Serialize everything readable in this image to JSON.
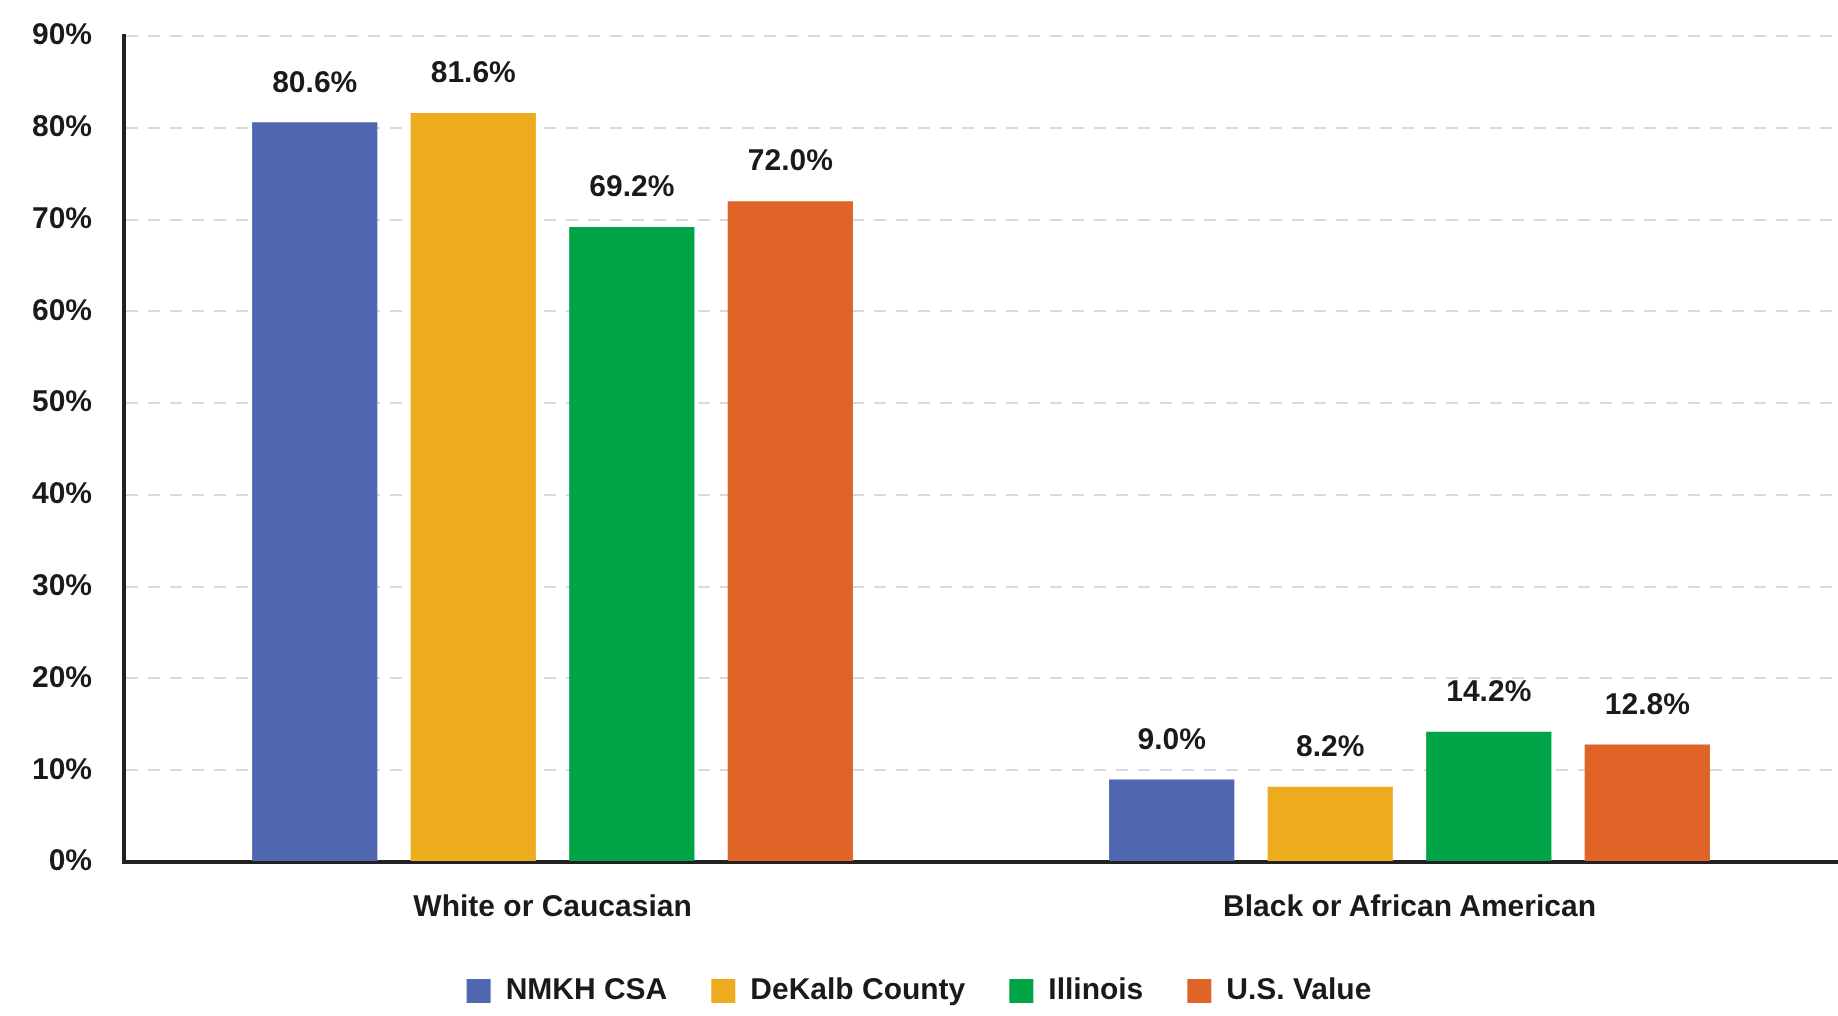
{
  "chart_data": {
    "type": "bar",
    "categories": [
      "White or Caucasian",
      "Black or African American"
    ],
    "series": [
      {
        "name": "NMKH CSA",
        "color": "#5066b0",
        "values": [
          80.6,
          9.0
        ],
        "value_labels": [
          "80.6%",
          "9.0%"
        ]
      },
      {
        "name": "DeKalb County",
        "color": "#ecac1e",
        "values": [
          81.6,
          8.2
        ],
        "value_labels": [
          "81.6%",
          "8.2%"
        ]
      },
      {
        "name": "Illinois",
        "color": "#00a346",
        "values": [
          69.2,
          14.2
        ],
        "value_labels": [
          "69.2%",
          "14.2%"
        ]
      },
      {
        "name": "U.S. Value",
        "color": "#e06428",
        "values": [
          72.0,
          12.8
        ],
        "value_labels": [
          "72.0%",
          "12.8%"
        ]
      }
    ],
    "ylim": [
      0,
      90
    ],
    "yticks": [
      {
        "value": 0,
        "label": "0%"
      },
      {
        "value": 10,
        "label": "10%"
      },
      {
        "value": 20,
        "label": "20%"
      },
      {
        "value": 30,
        "label": "30%"
      },
      {
        "value": 40,
        "label": "40%"
      },
      {
        "value": 50,
        "label": "50%"
      },
      {
        "value": 60,
        "label": "60%"
      },
      {
        "value": 70,
        "label": "70%"
      },
      {
        "value": 80,
        "label": "80%"
      },
      {
        "value": 90,
        "label": "90%"
      }
    ],
    "grid": "y",
    "legend": "bottom"
  }
}
